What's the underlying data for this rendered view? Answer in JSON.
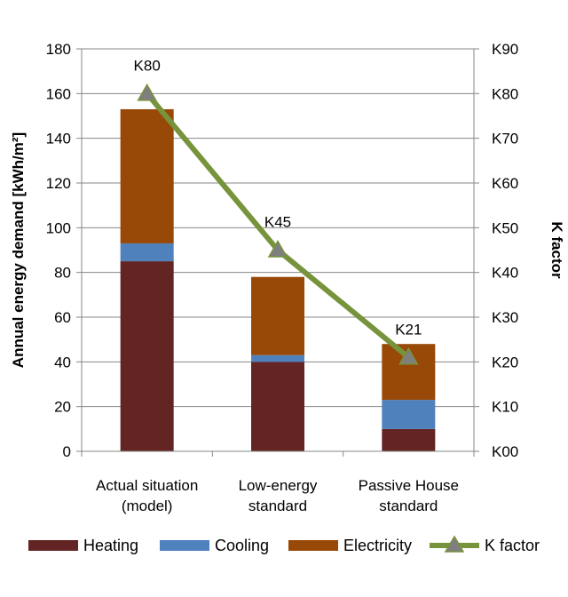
{
  "chart_data": {
    "type": "bar",
    "stacked": true,
    "title": "",
    "categories": [
      [
        "Actual situation",
        "(model)"
      ],
      [
        "Low-energy",
        "standard"
      ],
      [
        "Passive House",
        "standard"
      ]
    ],
    "series": [
      {
        "name": "Heating",
        "values": [
          85,
          40,
          10
        ],
        "color": "#632523"
      },
      {
        "name": "Cooling",
        "values": [
          8,
          3,
          13
        ],
        "color": "#4f81bd"
      },
      {
        "name": "Electricity",
        "values": [
          60,
          35,
          25
        ],
        "color": "#984807"
      }
    ],
    "line_series": {
      "name": "K factor",
      "axis": "right",
      "values": [
        80,
        45,
        21
      ],
      "labels": [
        "K80",
        "K45",
        "K21"
      ],
      "color": "#77933c",
      "marker": "triangle",
      "marker_color": "#7f7f7f"
    },
    "ylabel": "Annual energy demand [kWh/m²]",
    "ylim": [
      0,
      180
    ],
    "yticks": [
      0,
      20,
      40,
      60,
      80,
      100,
      120,
      140,
      160,
      180
    ],
    "y2label": "K factor",
    "y2lim": [
      0,
      90
    ],
    "y2ticks": [
      "K00",
      "K10",
      "K20",
      "K30",
      "K40",
      "K50",
      "K60",
      "K70",
      "K80",
      "K90"
    ],
    "gridlines": true,
    "legend": "bottom"
  }
}
